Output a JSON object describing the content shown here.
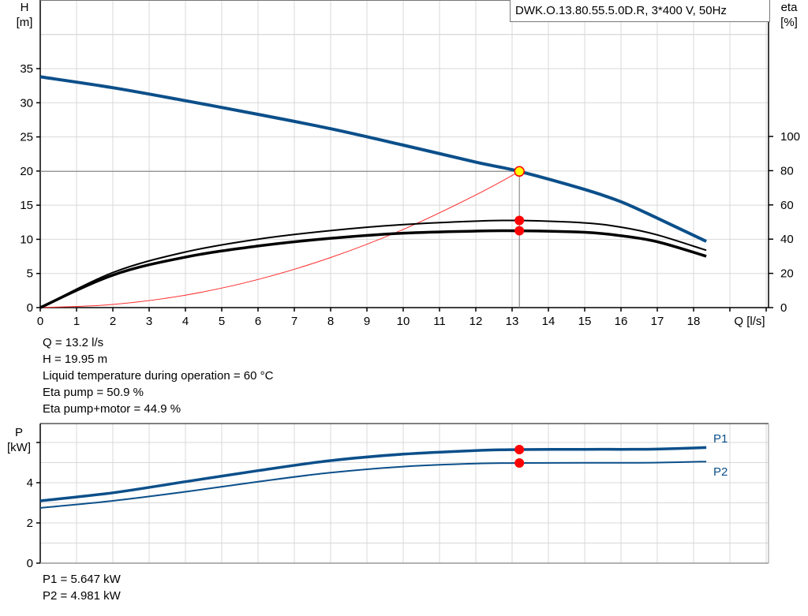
{
  "header": {
    "pump_title": "DWK.O.13.80.55.5.0D.R, 3*400 V, 50Hz"
  },
  "main_chart": {
    "y_left_label": "H",
    "y_left_unit": "[m]",
    "y_right_label": "eta",
    "y_right_unit": "[%]",
    "x_label": "Q [l/s]"
  },
  "operating_point": {
    "q_text": "Q = 13.2 l/s",
    "h_text": "H = 19.95 m",
    "temp_text": "Liquid temperature during operation = 60 °C",
    "eta_pump_text": "Eta pump = 50.9 %",
    "eta_total_text": "Eta pump+motor = 44.9 %"
  },
  "power_chart": {
    "y_label": "P",
    "y_unit": "[kW]",
    "legend_p1": "P1",
    "legend_p2": "P2"
  },
  "power_point": {
    "p1_text": "P1 = 5.647 kW",
    "p2_text": "P2 = 4.981 kW"
  },
  "colors": {
    "curve_blue": "#0b4f8a",
    "eta_black": "#000000",
    "system_red": "#ff2a2a",
    "marker_red": "#ff0000",
    "marker_yellow": "#ffff00",
    "grid": "#d8d8d8"
  },
  "chart_data": [
    {
      "type": "line",
      "title": "DWK.O.13.80.55.5.0D.R, 3*400 V, 50Hz",
      "xlabel": "Q [l/s]",
      "ylabel": "H [m]",
      "ylabel_right": "eta [%]",
      "xlim": [
        0,
        20.1
      ],
      "ylim": [
        0,
        45
      ],
      "ylim_right": [
        0,
        180
      ],
      "x_ticks": [
        0,
        1,
        2,
        3,
        4,
        5,
        6,
        7,
        8,
        9,
        10,
        11,
        12,
        13,
        14,
        15,
        16,
        17,
        18
      ],
      "y_ticks": [
        0,
        5,
        10,
        15,
        20,
        25,
        30,
        35
      ],
      "y_right_ticks": [
        0,
        20,
        40,
        60,
        80,
        100
      ],
      "grid": true,
      "series": [
        {
          "name": "H (head)",
          "axis": "left",
          "x": [
            0,
            2,
            4,
            6,
            8,
            10,
            12,
            13.2,
            15,
            16,
            17,
            18.35
          ],
          "values": [
            33.8,
            32.2,
            30.3,
            28.3,
            26.2,
            23.8,
            21.3,
            19.95,
            17.3,
            15.5,
            13.1,
            9.7
          ]
        },
        {
          "name": "Eta pump",
          "axis": "right",
          "x": [
            0,
            2,
            4,
            6,
            8,
            10,
            12,
            13.2,
            15,
            16,
            17,
            18.35
          ],
          "values": [
            0,
            20.5,
            32.5,
            40,
            45,
            48.5,
            50.5,
            50.9,
            49.5,
            47,
            42.5,
            33.5
          ]
        },
        {
          "name": "Eta pump+motor",
          "axis": "right",
          "x": [
            0,
            2,
            4,
            6,
            8,
            10,
            12,
            13.2,
            15,
            16,
            17,
            18.35
          ],
          "values": [
            0,
            19,
            29.5,
            36,
            40.5,
            43.5,
            44.7,
            44.9,
            44,
            42,
            38.5,
            30
          ]
        },
        {
          "name": "System curve",
          "axis": "left",
          "x": [
            0,
            2,
            4,
            6,
            8,
            10,
            12,
            13.2
          ],
          "values": [
            0,
            0.46,
            1.83,
            4.12,
            7.33,
            11.45,
            16.49,
            19.95
          ]
        }
      ],
      "annotations": [
        {
          "type": "operating_point",
          "q": 13.2,
          "h": 19.95,
          "eta_pump": 50.9,
          "eta_total": 44.9
        }
      ]
    },
    {
      "type": "line",
      "title": "",
      "xlabel": "Q [l/s]",
      "ylabel": "P [kW]",
      "xlim": [
        0,
        20.1
      ],
      "ylim": [
        0,
        6.9
      ],
      "y_ticks": [
        0,
        2,
        4
      ],
      "grid": true,
      "legend_position": "right",
      "series": [
        {
          "name": "P1",
          "x": [
            0,
            2,
            4,
            6,
            8,
            10,
            12,
            13.2,
            15,
            16,
            17,
            18.35
          ],
          "values": [
            3.1,
            3.5,
            4.05,
            4.6,
            5.1,
            5.42,
            5.6,
            5.647,
            5.66,
            5.66,
            5.67,
            5.75
          ]
        },
        {
          "name": "P2",
          "x": [
            0,
            2,
            4,
            6,
            8,
            10,
            12,
            13.2,
            15,
            16,
            17,
            18.35
          ],
          "values": [
            2.75,
            3.1,
            3.55,
            4.05,
            4.5,
            4.8,
            4.95,
            4.981,
            4.99,
            4.99,
            5.0,
            5.05
          ]
        }
      ],
      "annotations": [
        {
          "type": "operating_point",
          "q": 13.2,
          "p1": 5.647,
          "p2": 4.981
        }
      ]
    }
  ]
}
